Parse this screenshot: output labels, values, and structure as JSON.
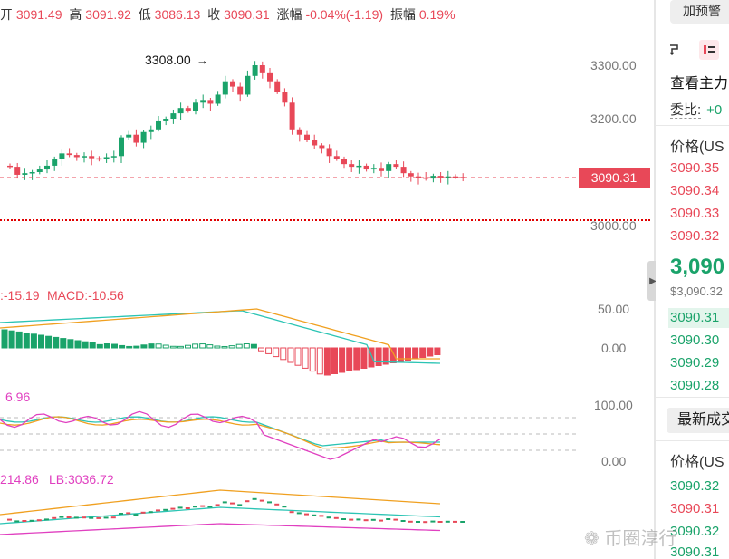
{
  "ohlc": {
    "open_label": "开",
    "open": "3091.49",
    "high_label": "高",
    "high": "3091.92",
    "low_label": "低",
    "low": "3086.13",
    "close_label": "收",
    "close": "3090.31",
    "change_label": "涨幅",
    "change": "-0.04%(-1.19)",
    "amplitude_label": "振幅",
    "amplitude": "0.19%"
  },
  "main_chart": {
    "high_marker": "3308.00",
    "current_price_tag": "3090.31",
    "axis_labels": [
      "3300.00",
      "3200.00",
      "3000.00"
    ]
  },
  "macd": {
    "label_partial": ":-15.19",
    "macd_label": "MACD:-10.56",
    "axis_labels": [
      "50.00",
      "0.00"
    ]
  },
  "kdj": {
    "label_partial": "6.96",
    "axis_labels": [
      "100.00",
      "0.00"
    ]
  },
  "boll": {
    "label_partial": "214.86",
    "lb_label": "LB:3036.72"
  },
  "sidebar": {
    "alert_button": "加预警",
    "title": "查看主力",
    "ratio_label": "委比:",
    "ratio_value": "+0",
    "price_header": "价格(US",
    "asks": [
      "3090.35",
      "3090.34",
      "3090.33",
      "3090.32"
    ],
    "last_price": "3,090",
    "last_price_usd": "$3,090.32",
    "bids": [
      "3090.31",
      "3090.30",
      "3090.29",
      "3090.28"
    ],
    "latest_trades_button": "最新成交",
    "trades_price_header": "价格(US",
    "trades": [
      {
        "price": "3090.32",
        "side": "buy"
      },
      {
        "price": "3090.31",
        "side": "sell"
      },
      {
        "price": "3090.32",
        "side": "buy"
      },
      {
        "price": "3090.31",
        "side": "buy"
      }
    ]
  },
  "watermark": "币圈淳行",
  "colors": {
    "up": "#1aa36a",
    "down": "#e84858",
    "k_line": "#2bc4b4",
    "d_line": "#f0a020",
    "j_line": "#e040c0",
    "dif_line": "#2bc4b4",
    "dea_line": "#f0a020"
  }
}
